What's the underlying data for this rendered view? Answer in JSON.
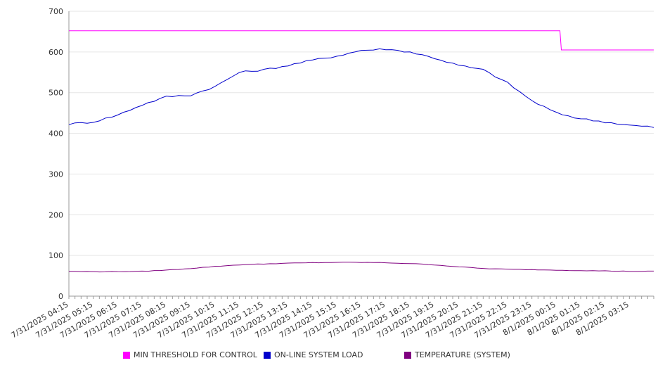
{
  "chart_data": {
    "type": "line",
    "title": "",
    "xlabel": "",
    "ylabel": "",
    "ylim": [
      0,
      700
    ],
    "yticks": [
      0,
      100,
      200,
      300,
      400,
      500,
      600,
      700
    ],
    "xticks": [
      "7/31/2025 04:15",
      "7/31/2025 05:15",
      "7/31/2025 06:15",
      "7/31/2025 07:15",
      "7/31/2025 08:15",
      "7/31/2025 09:15",
      "7/31/2025 10:15",
      "7/31/2025 11:15",
      "7/31/2025 12:15",
      "7/31/2025 13:15",
      "7/31/2025 14:15",
      "7/31/2025 15:15",
      "7/31/2025 16:15",
      "7/31/2025 17:15",
      "7/31/2025 18:15",
      "7/31/2025 19:15",
      "7/31/2025 20:15",
      "7/31/2025 21:15",
      "7/31/2025 22:15",
      "7/31/2025 23:15",
      "8/1/2025 00:15",
      "8/1/2025 01:15",
      "8/1/2025 02:15",
      "8/1/2025 03:15"
    ],
    "x_hours_from_first_tick": [
      0,
      1,
      2,
      3,
      4,
      5,
      6,
      7,
      8,
      9,
      10,
      11,
      12,
      13,
      14,
      15,
      16,
      17,
      18,
      19,
      20,
      21,
      22,
      23,
      24
    ],
    "grid": true,
    "legend_position": "bottom",
    "series": [
      {
        "name": "MIN THRESHOLD FOR CONTROL",
        "color": "#ff00ff",
        "values": [
          652,
          652,
          652,
          652,
          652,
          652,
          652,
          652,
          652,
          652,
          652,
          652,
          652,
          652,
          652,
          652,
          652,
          652,
          652,
          652,
          652,
          605,
          605,
          605,
          605
        ]
      },
      {
        "name": "ON-LINE SYSTEM LOAD",
        "color": "#0000cc",
        "values": [
          423,
          428,
          445,
          470,
          490,
          494,
          515,
          550,
          556,
          567,
          580,
          590,
          604,
          607,
          600,
          585,
          567,
          556,
          524,
          480,
          450,
          436,
          428,
          420,
          415
        ]
      },
      {
        "name": "TEMPERATURE (SYSTEM)",
        "color": "#800080",
        "values": [
          61,
          60,
          60,
          61,
          64,
          68,
          73,
          77,
          79,
          81,
          82,
          83,
          83,
          82,
          80,
          77,
          72,
          68,
          66,
          65,
          64,
          63,
          62,
          61,
          61
        ]
      }
    ]
  }
}
